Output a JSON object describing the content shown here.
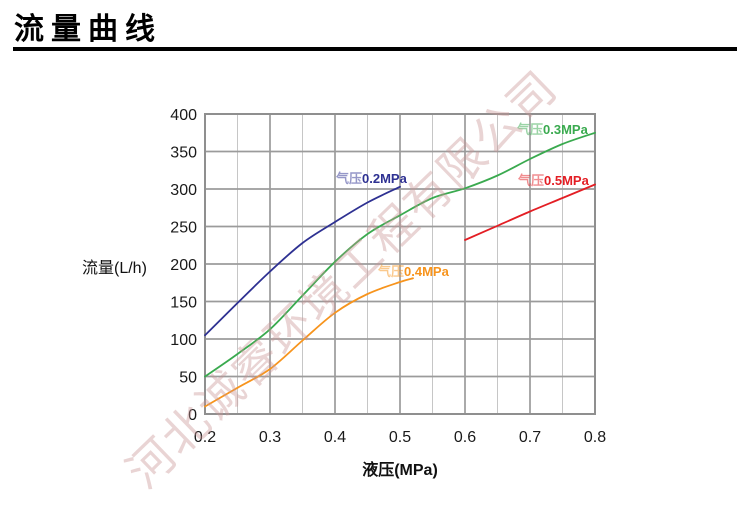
{
  "page": {
    "title": "流量曲线",
    "watermark": "河北诚睿环境工程有限公司"
  },
  "chart_data": {
    "type": "line",
    "title": "流量曲线",
    "xlabel": "液压(MPa)",
    "ylabel": "流量(L/h)",
    "xlim": [
      0.2,
      0.8
    ],
    "ylim": [
      0,
      400
    ],
    "x_ticks": [
      0.2,
      0.3,
      0.4,
      0.5,
      0.6,
      0.7,
      0.8
    ],
    "y_ticks": [
      0,
      50,
      100,
      150,
      200,
      250,
      300,
      350,
      400
    ],
    "x_minor_step": 0.05,
    "grid": true,
    "legend_position": "inline-labels",
    "series": [
      {
        "name": "气压0.2MPa",
        "label_prefix": "气压",
        "label_value": "0.2MPa",
        "color": "#2e3192",
        "points": [
          [
            0.2,
            105
          ],
          [
            0.25,
            148
          ],
          [
            0.3,
            190
          ],
          [
            0.35,
            228
          ],
          [
            0.4,
            256
          ],
          [
            0.45,
            282
          ],
          [
            0.5,
            303
          ]
        ]
      },
      {
        "name": "气压0.3MPa",
        "label_prefix": "气压",
        "label_value": "0.3MPa",
        "color": "#3aaa4f",
        "points": [
          [
            0.2,
            50
          ],
          [
            0.25,
            80
          ],
          [
            0.3,
            113
          ],
          [
            0.35,
            158
          ],
          [
            0.4,
            203
          ],
          [
            0.45,
            240
          ],
          [
            0.5,
            265
          ],
          [
            0.55,
            288
          ],
          [
            0.6,
            301
          ],
          [
            0.65,
            318
          ],
          [
            0.7,
            340
          ],
          [
            0.75,
            360
          ],
          [
            0.8,
            375
          ]
        ]
      },
      {
        "name": "气压0.4MPa",
        "label_prefix": "气压",
        "label_value": "0.4MPa",
        "color": "#f7941d",
        "points": [
          [
            0.2,
            10
          ],
          [
            0.25,
            35
          ],
          [
            0.3,
            60
          ],
          [
            0.35,
            98
          ],
          [
            0.4,
            135
          ],
          [
            0.45,
            160
          ],
          [
            0.5,
            176
          ],
          [
            0.52,
            181
          ]
        ]
      },
      {
        "name": "气压0.5MPa",
        "label_prefix": "气压",
        "label_value": "0.5MPa",
        "color": "#e31e24",
        "points": [
          [
            0.6,
            232
          ],
          [
            0.65,
            251
          ],
          [
            0.7,
            270
          ],
          [
            0.75,
            288
          ],
          [
            0.8,
            306
          ]
        ]
      }
    ]
  }
}
